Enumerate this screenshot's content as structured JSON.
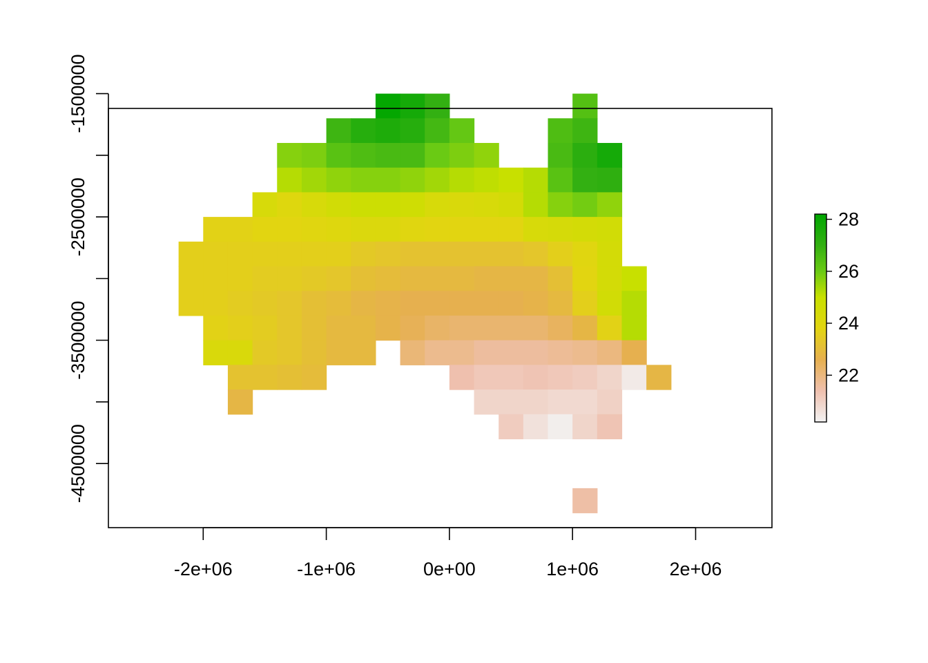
{
  "chart_data": {
    "type": "heatmap",
    "title": "",
    "xlabel": "",
    "ylabel": "",
    "xlim": [
      -2770000,
      2620000
    ],
    "ylim": [
      -5020000,
      -1620000
    ],
    "grid": false,
    "legend_position": "right",
    "x_ticks": [
      {
        "value": -2000000,
        "label": "-2e+06"
      },
      {
        "value": -1000000,
        "label": "-1e+06"
      },
      {
        "value": 0,
        "label": "0e+00"
      },
      {
        "value": 1000000,
        "label": "1e+06"
      },
      {
        "value": 2000000,
        "label": "2e+06"
      }
    ],
    "y_ticks": [
      {
        "value": -4500000,
        "label": "-4500000",
        "labeled": true
      },
      {
        "value": -4000000,
        "label": "",
        "labeled": false
      },
      {
        "value": -3500000,
        "label": "-3500000",
        "labeled": true
      },
      {
        "value": -3000000,
        "label": "",
        "labeled": false
      },
      {
        "value": -2500000,
        "label": "-2500000",
        "labeled": true
      },
      {
        "value": -2000000,
        "label": "",
        "labeled": false
      },
      {
        "value": -1500000,
        "label": "-1500000",
        "labeled": true
      }
    ],
    "grid_spec": {
      "x0": -2000000,
      "dx": 200000,
      "y_top": -1500000,
      "dy": 200000
    },
    "colorbar": {
      "range": [
        20.2,
        28.2
      ],
      "ticks": [
        {
          "value": 22,
          "label": "22"
        },
        {
          "value": 24,
          "label": "24"
        },
        {
          "value": 26,
          "label": "26"
        },
        {
          "value": 28,
          "label": "28"
        }
      ],
      "stops": [
        {
          "v": 20.2,
          "c": "#F2F2F2"
        },
        {
          "v": 21.4,
          "c": "#EFC0AE"
        },
        {
          "v": 22.6,
          "c": "#E6B04F"
        },
        {
          "v": 23.8,
          "c": "#E2D511"
        },
        {
          "v": 25.0,
          "c": "#C8E000"
        },
        {
          "v": 26.0,
          "c": "#6ACA14"
        },
        {
          "v": 27.0,
          "c": "#33B012"
        },
        {
          "v": 28.2,
          "c": "#00A600"
        }
      ]
    },
    "rows": [
      {
        "row": 0,
        "start": 7,
        "values": [
          28.1,
          27.7,
          27.0
        ]
      },
      {
        "row": 0,
        "start": 15,
        "values": [
          26.4
        ]
      },
      {
        "row": 1,
        "start": 5,
        "values": [
          26.8,
          27.3,
          27.5,
          27.3,
          26.7,
          26.1
        ]
      },
      {
        "row": 1,
        "start": 14,
        "values": [
          26.5,
          26.8
        ]
      },
      {
        "row": 2,
        "start": 3,
        "values": [
          25.7,
          25.8,
          26.3,
          26.5,
          26.6,
          26.6,
          26.0,
          25.8,
          25.6
        ]
      },
      {
        "row": 2,
        "start": 14,
        "values": [
          26.6,
          27.2,
          27.7
        ]
      },
      {
        "row": 3,
        "start": 3,
        "values": [
          25.2,
          25.4,
          25.6,
          25.7,
          25.7,
          25.6,
          25.4,
          25.2,
          25.1,
          25.0
        ]
      },
      {
        "row": 3,
        "start": 13,
        "values": [
          25.2,
          26.3,
          27.0,
          27.1
        ]
      },
      {
        "row": 4,
        "start": 2,
        "values": [
          24.3,
          24.0,
          24.3,
          24.6,
          24.8,
          24.8,
          24.7,
          24.3,
          24.2,
          24.3,
          24.5,
          25.2,
          25.7,
          25.9,
          25.6
        ]
      },
      {
        "row": 5,
        "start": 0,
        "values": [
          23.7,
          23.7,
          23.8,
          23.8,
          23.9,
          24.0,
          24.1,
          24.1,
          23.9,
          23.8,
          23.8,
          23.8,
          23.8,
          24.3,
          24.4,
          24.5,
          24.6
        ]
      },
      {
        "row": 6,
        "start": -1,
        "values": [
          23.6,
          23.6,
          23.6,
          23.6,
          23.6,
          23.6,
          23.6,
          23.4,
          23.3,
          23.2,
          23.2,
          23.2,
          23.2,
          23.2,
          23.3,
          23.6,
          23.9,
          24.5
        ]
      },
      {
        "row": 7,
        "start": -1,
        "values": [
          23.6,
          23.6,
          23.6,
          23.5,
          23.5,
          23.4,
          23.3,
          23.1,
          23.0,
          22.9,
          22.9,
          22.9,
          22.8,
          22.8,
          22.8,
          23.1,
          23.8,
          24.5,
          25.0
        ]
      },
      {
        "row": 8,
        "start": -1,
        "values": [
          23.6,
          23.6,
          23.5,
          23.4,
          23.3,
          23.1,
          23.0,
          22.8,
          22.7,
          22.6,
          22.6,
          22.6,
          22.6,
          22.6,
          22.7,
          22.9,
          23.6,
          24.6,
          25.2
        ]
      },
      {
        "row": 9,
        "start": 0,
        "values": [
          23.7,
          23.6,
          23.5,
          23.3,
          23.1,
          22.9,
          22.9,
          22.7,
          22.5,
          22.3,
          22.2,
          22.2,
          22.2,
          22.2,
          22.4,
          22.8,
          23.7,
          25.2
        ]
      },
      {
        "row": 10,
        "start": 0,
        "values": [
          24.2,
          24.2,
          23.4,
          23.3,
          23.1,
          22.9,
          22.9
        ]
      },
      {
        "row": 10,
        "start": 8,
        "values": [
          22.1,
          21.8,
          21.8,
          21.6,
          21.6,
          21.6,
          21.7,
          21.8,
          22.0,
          22.6
        ]
      },
      {
        "row": 11,
        "start": 1,
        "values": [
          23.2,
          23.2,
          23.1,
          23.0
        ]
      },
      {
        "row": 11,
        "start": 10,
        "values": [
          21.4,
          21.2,
          21.2,
          21.3,
          21.2,
          21.1,
          20.9,
          20.4,
          22.8
        ]
      },
      {
        "row": 12,
        "start": 1,
        "values": [
          22.8
        ]
      },
      {
        "row": 12,
        "start": 11,
        "values": [
          20.9,
          20.9,
          20.9,
          20.8,
          20.8,
          21.0
        ]
      },
      {
        "row": 13,
        "start": 12,
        "values": [
          21.1,
          20.6,
          20.3,
          20.9,
          21.3
        ]
      },
      {
        "row": 16,
        "start": 15,
        "values": [
          21.5
        ]
      }
    ]
  }
}
